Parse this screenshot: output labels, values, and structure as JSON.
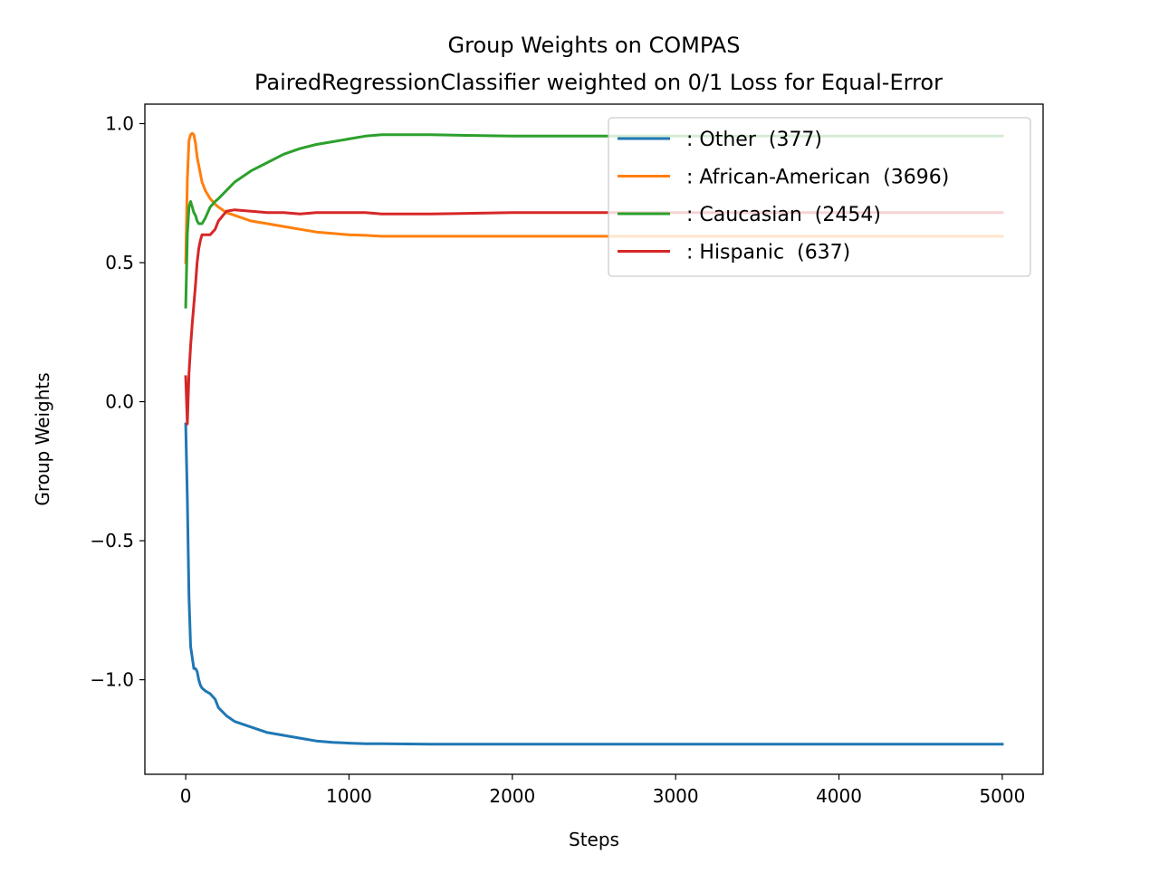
{
  "chart_data": {
    "type": "line",
    "title": "Group Weights on COMPAS",
    "subtitle": "PairedRegressionClassifier weighted on 0/1 Loss for Equal-Error",
    "xlabel": "Steps",
    "ylabel": "Group Weights",
    "xlim": [
      -250,
      5250
    ],
    "ylim": [
      -1.34,
      1.07
    ],
    "xticks": [
      0,
      1000,
      2000,
      3000,
      4000,
      5000
    ],
    "xtick_labels": [
      "0",
      "1000",
      "2000",
      "3000",
      "4000",
      "5000"
    ],
    "yticks": [
      -1.0,
      -0.5,
      0.0,
      0.5,
      1.0
    ],
    "ytick_labels": [
      "−1.0",
      "−0.5",
      "0.0",
      "0.5",
      "1.0"
    ],
    "grid": false,
    "legend_position": "top-right",
    "series": [
      {
        "name": ": Other  (377)",
        "color": "#1f77b4",
        "x": [
          0,
          10,
          20,
          30,
          40,
          50,
          60,
          70,
          80,
          90,
          100,
          120,
          150,
          180,
          200,
          250,
          300,
          400,
          500,
          600,
          700,
          800,
          900,
          1000,
          1100,
          1200,
          1500,
          2000,
          2500,
          3000,
          3500,
          4000,
          4500,
          5000
        ],
        "y": [
          -0.08,
          -0.35,
          -0.7,
          -0.88,
          -0.92,
          -0.96,
          -0.96,
          -0.97,
          -1.0,
          -1.02,
          -1.03,
          -1.04,
          -1.05,
          -1.07,
          -1.1,
          -1.13,
          -1.15,
          -1.17,
          -1.19,
          -1.2,
          -1.21,
          -1.22,
          -1.225,
          -1.228,
          -1.23,
          -1.23,
          -1.232,
          -1.232,
          -1.232,
          -1.232,
          -1.232,
          -1.232,
          -1.232,
          -1.232
        ]
      },
      {
        "name": ": African-American  (3696)",
        "color": "#ff7f0e",
        "x": [
          0,
          10,
          20,
          30,
          40,
          50,
          60,
          70,
          80,
          90,
          100,
          120,
          150,
          180,
          200,
          250,
          300,
          400,
          500,
          600,
          700,
          800,
          900,
          1000,
          1100,
          1200,
          1500,
          2000,
          2500,
          3000,
          3500,
          4000,
          4500,
          5000
        ],
        "y": [
          0.5,
          0.8,
          0.94,
          0.96,
          0.965,
          0.96,
          0.93,
          0.88,
          0.85,
          0.82,
          0.79,
          0.76,
          0.73,
          0.71,
          0.7,
          0.68,
          0.67,
          0.65,
          0.64,
          0.63,
          0.62,
          0.61,
          0.605,
          0.6,
          0.598,
          0.595,
          0.595,
          0.595,
          0.595,
          0.595,
          0.595,
          0.595,
          0.595,
          0.595
        ]
      },
      {
        "name": ": Caucasian  (2454)",
        "color": "#2ca02c",
        "x": [
          0,
          10,
          20,
          30,
          40,
          50,
          60,
          70,
          80,
          90,
          100,
          120,
          150,
          180,
          200,
          250,
          300,
          400,
          500,
          600,
          700,
          800,
          900,
          1000,
          1100,
          1200,
          1500,
          2000,
          2500,
          3000,
          3500,
          4000,
          4500,
          5000
        ],
        "y": [
          0.34,
          0.6,
          0.7,
          0.72,
          0.7,
          0.68,
          0.67,
          0.65,
          0.64,
          0.64,
          0.64,
          0.66,
          0.7,
          0.72,
          0.73,
          0.76,
          0.79,
          0.83,
          0.86,
          0.89,
          0.91,
          0.925,
          0.935,
          0.945,
          0.955,
          0.96,
          0.96,
          0.955,
          0.955,
          0.955,
          0.955,
          0.955,
          0.955,
          0.955
        ]
      },
      {
        "name": ": Hispanic  (637)",
        "color": "#d62728",
        "x": [
          0,
          10,
          20,
          30,
          40,
          50,
          60,
          70,
          80,
          90,
          100,
          120,
          150,
          180,
          200,
          250,
          300,
          400,
          500,
          600,
          700,
          800,
          900,
          1000,
          1100,
          1200,
          1500,
          2000,
          2500,
          3000,
          3500,
          4000,
          4500,
          5000
        ],
        "y": [
          0.09,
          -0.08,
          0.1,
          0.2,
          0.28,
          0.35,
          0.42,
          0.5,
          0.55,
          0.58,
          0.6,
          0.6,
          0.6,
          0.62,
          0.65,
          0.685,
          0.69,
          0.685,
          0.68,
          0.68,
          0.675,
          0.68,
          0.68,
          0.68,
          0.68,
          0.675,
          0.675,
          0.68,
          0.68,
          0.68,
          0.68,
          0.68,
          0.68,
          0.68
        ]
      }
    ]
  }
}
